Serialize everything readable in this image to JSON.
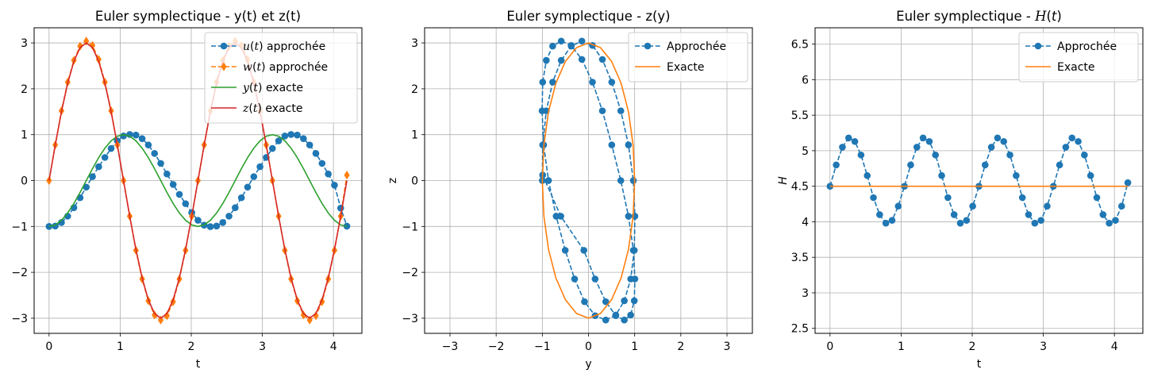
{
  "chart_data": [
    {
      "type": "line",
      "title": "Euler symplectique - y(t) et z(t)",
      "xlabel": "t",
      "ylabel": "",
      "xlim": [
        -0.21,
        4.4
      ],
      "ylim": [
        -3.33,
        3.33
      ],
      "xticks": [
        0,
        1,
        2,
        3,
        4
      ],
      "yticks": [
        -3,
        -2,
        -1,
        0,
        1,
        2,
        3
      ],
      "grid": true,
      "legend": "upper right",
      "x": [
        0.0,
        0.0873,
        0.1745,
        0.2618,
        0.3491,
        0.4363,
        0.5236,
        0.6109,
        0.6981,
        0.7854,
        0.8727,
        0.96,
        1.0472,
        1.1345,
        1.2217,
        1.309,
        1.3963,
        1.4835,
        1.5708,
        1.6581,
        1.7453,
        1.8326,
        1.9199,
        2.0071,
        2.0944,
        2.1817,
        2.2689,
        2.3562,
        2.4435,
        2.5307,
        2.618,
        2.7053,
        2.7925,
        2.8798,
        2.9671,
        3.0543,
        3.1416,
        3.2289,
        3.3161,
        3.4034,
        3.4907,
        3.5779,
        3.6652,
        3.7525,
        3.8397,
        3.927,
        4.0143,
        4.1015,
        4.1888
      ],
      "series": [
        {
          "name": "approx_u",
          "label_prefix": "u",
          "label_suffix": " approchée",
          "color": "#1f77b4",
          "style": "dashed",
          "marker": "circle",
          "values": [
            -1.0,
            -0.992,
            -0.914,
            -0.776,
            -0.591,
            -0.374,
            -0.143,
            0.086,
            0.301,
            0.504,
            0.7,
            0.866,
            0.972,
            1.005,
            0.992,
            0.914,
            0.776,
            0.591,
            0.374,
            0.143,
            -0.086,
            -0.301,
            -0.504,
            -0.7,
            -0.866,
            -0.972,
            -1.005,
            -0.992,
            -0.914,
            -0.776,
            -0.591,
            -0.374,
            -0.143,
            0.086,
            0.301,
            0.504,
            0.7,
            0.866,
            0.972,
            1.005,
            0.992,
            0.914,
            0.776,
            0.591,
            0.374,
            0.143,
            -0.1,
            -0.6,
            -0.993
          ]
        },
        {
          "name": "approx_w",
          "label_prefix": "w",
          "label_suffix": " approchée",
          "color": "#ff7f0e",
          "style": "dashed",
          "marker": "diamond",
          "values": [
            0.0,
            0.777,
            1.52,
            2.145,
            2.62,
            2.93,
            3.04,
            2.945,
            2.64,
            2.145,
            1.52,
            0.777,
            0.0,
            -0.777,
            -1.52,
            -2.145,
            -2.62,
            -2.93,
            -3.04,
            -2.945,
            -2.64,
            -2.145,
            -1.52,
            -0.777,
            0.0,
            0.777,
            1.52,
            2.145,
            2.62,
            2.93,
            3.04,
            2.945,
            2.64,
            2.145,
            1.52,
            0.777,
            0.0,
            -0.777,
            -1.52,
            -2.145,
            -2.62,
            -2.93,
            -3.04,
            -2.945,
            -2.64,
            -2.145,
            -1.52,
            -0.777,
            0.12
          ]
        },
        {
          "name": "exact_y",
          "label_prefix": "y",
          "label_suffix": " exacte",
          "color": "#2ca02c",
          "style": "solid",
          "marker": "none",
          "values": [
            -1.0,
            -0.966,
            -0.866,
            -0.707,
            -0.5,
            -0.259,
            0.0,
            0.259,
            0.5,
            0.707,
            0.866,
            0.966,
            1.0,
            0.966,
            0.866,
            0.707,
            0.5,
            0.259,
            0.0,
            -0.259,
            -0.5,
            -0.707,
            -0.866,
            -0.966,
            -1.0,
            -0.966,
            -0.866,
            -0.707,
            -0.5,
            -0.259,
            0.0,
            0.259,
            0.5,
            0.707,
            0.866,
            0.966,
            1.0,
            0.966,
            0.866,
            0.707,
            0.5,
            0.259,
            0.0,
            -0.259,
            -0.5,
            -0.707,
            -0.866,
            -0.966,
            -1.0
          ]
        },
        {
          "name": "exact_z",
          "label_prefix": "z",
          "label_suffix": " exacte",
          "color": "#d62728",
          "style": "solid",
          "marker": "none",
          "values": [
            0.0,
            0.776,
            1.5,
            2.121,
            2.598,
            2.898,
            3.0,
            2.898,
            2.598,
            2.121,
            1.5,
            0.776,
            0.0,
            -0.776,
            -1.5,
            -2.121,
            -2.598,
            -2.898,
            -3.0,
            -2.898,
            -2.598,
            -2.121,
            -1.5,
            -0.776,
            0.0,
            0.776,
            1.5,
            2.121,
            2.598,
            2.898,
            3.0,
            2.898,
            2.598,
            2.121,
            1.5,
            0.776,
            0.0,
            -0.776,
            -1.5,
            -2.121,
            -2.598,
            -2.898,
            -3.0,
            -2.898,
            -2.598,
            -2.121,
            -1.5,
            -0.776,
            0.0
          ]
        }
      ]
    },
    {
      "type": "line",
      "title": "Euler symplectique - z(y)",
      "xlabel": "y",
      "ylabel": "z",
      "xlim": [
        -3.55,
        3.55
      ],
      "ylim": [
        -3.33,
        3.33
      ],
      "xticks": [
        -3,
        -2,
        -1,
        0,
        1,
        2,
        3
      ],
      "yticks": [
        -3,
        -2,
        -1,
        0,
        1,
        2,
        3
      ],
      "grid": true,
      "legend": "upper right",
      "series": [
        {
          "name": "Approchée",
          "color": "#1f77b4",
          "style": "dashed",
          "marker": "circle",
          "x": [
            -1.0,
            -0.992,
            -0.914,
            -0.776,
            -0.591,
            -0.374,
            -0.143,
            0.086,
            0.301,
            0.504,
            0.7,
            0.866,
            0.972,
            1.005,
            0.992,
            0.914,
            0.776,
            0.591,
            0.374,
            0.143,
            -0.086,
            -0.301,
            -0.504,
            -0.7,
            -0.866,
            -0.972,
            -1.005,
            -0.992,
            -0.914,
            -0.776,
            -0.591,
            -0.374,
            -0.143,
            0.086,
            0.301,
            0.504,
            0.7,
            0.866,
            0.972,
            1.005,
            0.992,
            0.914,
            0.776,
            0.591,
            0.374,
            0.143,
            -0.1,
            -0.6,
            -0.993
          ],
          "y": [
            0.0,
            0.777,
            1.52,
            2.145,
            2.62,
            2.93,
            3.04,
            2.945,
            2.64,
            2.145,
            1.52,
            0.777,
            0.0,
            -0.777,
            -1.52,
            -2.145,
            -2.62,
            -2.93,
            -3.04,
            -2.945,
            -2.64,
            -2.145,
            -1.52,
            -0.777,
            0.0,
            0.777,
            1.52,
            2.145,
            2.62,
            2.93,
            3.04,
            2.945,
            2.64,
            2.145,
            1.52,
            0.777,
            0.0,
            -0.777,
            -1.52,
            -2.145,
            -2.62,
            -2.93,
            -3.04,
            -2.945,
            -2.64,
            -2.145,
            -1.52,
            -0.777,
            0.12
          ]
        },
        {
          "name": "Exacte",
          "color": "#ff7f0e",
          "style": "solid",
          "marker": "none",
          "x": [
            -1.0,
            -0.966,
            -0.866,
            -0.707,
            -0.5,
            -0.259,
            0.0,
            0.259,
            0.5,
            0.707,
            0.866,
            0.966,
            1.0,
            0.966,
            0.866,
            0.707,
            0.5,
            0.259,
            0.0,
            -0.259,
            -0.5,
            -0.707,
            -0.866,
            -0.966,
            -1.0
          ],
          "y": [
            0.0,
            0.776,
            1.5,
            2.121,
            2.598,
            2.898,
            3.0,
            2.898,
            2.598,
            2.121,
            1.5,
            0.776,
            0.0,
            -0.776,
            -1.5,
            -2.121,
            -2.598,
            -2.898,
            -3.0,
            -2.898,
            -2.598,
            -2.121,
            -1.5,
            -0.776,
            0.0
          ]
        }
      ]
    },
    {
      "type": "line",
      "title_prefix": "Euler symplectique - ",
      "title_symbol": "H",
      "title_arg": "t",
      "xlabel": "t",
      "ylabel_symbol": "H",
      "xlim": [
        -0.21,
        4.4
      ],
      "ylim": [
        2.43,
        6.73
      ],
      "xticks": [
        0,
        1,
        2,
        3,
        4
      ],
      "yticks": [
        2.5,
        3.0,
        3.5,
        4.0,
        4.5,
        5.0,
        5.5,
        6.0,
        6.5
      ],
      "grid": true,
      "legend": "upper right",
      "x": [
        0.0,
        0.0873,
        0.1745,
        0.2618,
        0.3491,
        0.4363,
        0.5236,
        0.6109,
        0.6981,
        0.7854,
        0.8727,
        0.96,
        1.0472,
        1.1345,
        1.2217,
        1.309,
        1.3963,
        1.4835,
        1.5708,
        1.6581,
        1.7453,
        1.8326,
        1.9199,
        2.0071,
        2.0944,
        2.1817,
        2.2689,
        2.3562,
        2.4435,
        2.5307,
        2.618,
        2.7053,
        2.7925,
        2.8798,
        2.9671,
        3.0543,
        3.1416,
        3.2289,
        3.3161,
        3.4034,
        3.4907,
        3.5779,
        3.6652,
        3.7525,
        3.8397,
        3.927,
        4.0143,
        4.1015,
        4.1888
      ],
      "series": [
        {
          "name": "Approchée",
          "color": "#1f77b4",
          "style": "dashed",
          "marker": "circle",
          "values": [
            4.5,
            4.8,
            5.05,
            5.18,
            5.13,
            4.94,
            4.65,
            4.34,
            4.1,
            3.98,
            4.02,
            4.22,
            4.5,
            4.8,
            5.05,
            5.18,
            5.13,
            4.94,
            4.65,
            4.34,
            4.1,
            3.98,
            4.02,
            4.22,
            4.5,
            4.8,
            5.05,
            5.18,
            5.13,
            4.94,
            4.65,
            4.34,
            4.1,
            3.98,
            4.02,
            4.22,
            4.5,
            4.8,
            5.05,
            5.18,
            5.13,
            4.94,
            4.65,
            4.34,
            4.1,
            3.98,
            4.02,
            4.22,
            4.55
          ]
        },
        {
          "name": "Exacte",
          "color": "#ff7f0e",
          "style": "solid",
          "marker": "none",
          "values": [
            4.5,
            4.5,
            4.5,
            4.5,
            4.5,
            4.5,
            4.5,
            4.5,
            4.5,
            4.5,
            4.5,
            4.5,
            4.5,
            4.5,
            4.5,
            4.5,
            4.5,
            4.5,
            4.5,
            4.5,
            4.5,
            4.5,
            4.5,
            4.5,
            4.5,
            4.5,
            4.5,
            4.5,
            4.5,
            4.5,
            4.5,
            4.5,
            4.5,
            4.5,
            4.5,
            4.5,
            4.5,
            4.5,
            4.5,
            4.5,
            4.5,
            4.5,
            4.5,
            4.5,
            4.5,
            4.5,
            4.5,
            4.5,
            4.5
          ]
        }
      ]
    }
  ]
}
